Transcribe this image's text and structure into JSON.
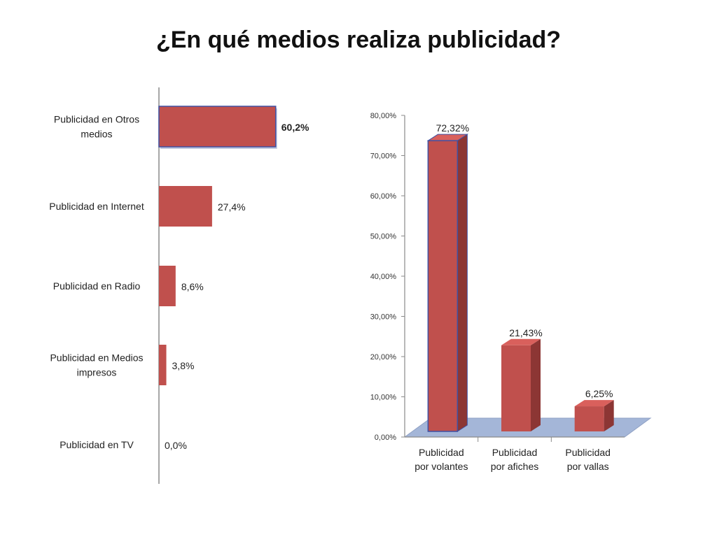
{
  "title": "¿En qué medios realiza publicidad?",
  "colors": {
    "bar_fill": "#c0504d",
    "bar_top": "#d9605c",
    "bar_side": "#8c3634",
    "bar_outline_highlight": "#3f51a3",
    "floor": "#a4b6d8",
    "axis": "#8a8a8a"
  },
  "chart_data": [
    {
      "type": "bar",
      "orientation": "horizontal",
      "categories": [
        "Publicidad en Otros medios",
        "Publicidad en Internet",
        "Publicidad en Radio",
        "Publicidad en Medios impresos",
        "Publicidad en TV"
      ],
      "category_lines": [
        [
          "Publicidad en Otros",
          "medios"
        ],
        [
          "Publicidad en Internet"
        ],
        [
          "Publicidad en Radio"
        ],
        [
          "Publicidad en Medios",
          "impresos"
        ],
        [
          "Publicidad en TV"
        ]
      ],
      "values": [
        60.2,
        27.4,
        8.6,
        3.8,
        0.0
      ],
      "data_labels": [
        "60,2%",
        "27,4%",
        "8,6%",
        "3,8%",
        "0,0%"
      ],
      "highlighted_index": 0,
      "xlim": [
        0,
        100
      ],
      "title": "",
      "xlabel": "",
      "ylabel": "",
      "grid": false
    },
    {
      "type": "bar",
      "orientation": "vertical",
      "style": "3d",
      "categories": [
        "Publicidad por volantes",
        "Publicidad por afiches",
        "Publicidad por vallas"
      ],
      "category_lines": [
        [
          "Publicidad",
          "por volantes"
        ],
        [
          "Publicidad",
          "por afiches"
        ],
        [
          "Publicidad",
          "por vallas"
        ]
      ],
      "values": [
        72.32,
        21.43,
        6.25
      ],
      "data_labels": [
        "72,32%",
        "21,43%",
        "6,25%"
      ],
      "highlighted_index": 0,
      "ylim": [
        0,
        80
      ],
      "yticks": [
        0,
        10,
        20,
        30,
        40,
        50,
        60,
        70,
        80
      ],
      "ytick_labels": [
        "0,00%",
        "10,00%",
        "20,00%",
        "30,00%",
        "40,00%",
        "50,00%",
        "60,00%",
        "70,00%",
        "80,00%"
      ],
      "title": "",
      "xlabel": "",
      "ylabel": "",
      "grid": false
    }
  ]
}
